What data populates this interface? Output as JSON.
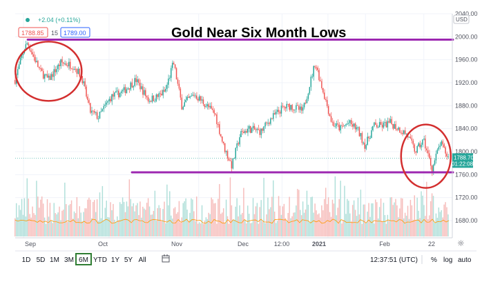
{
  "header": {
    "change_text": "+2.04 (+0.11%)",
    "bid": "1788.85",
    "spread": "15",
    "ask": "1789.00",
    "currency": "USD"
  },
  "price_tag": {
    "price": "1788.70",
    "countdown": "01:22:08"
  },
  "toolbar": {
    "ranges": [
      "1D",
      "5D",
      "1M",
      "3M",
      "6M",
      "YTD",
      "1Y",
      "5Y",
      "All"
    ],
    "selected_range": "6M",
    "clock": "12:37:51 (UTC)",
    "percent_label": "%",
    "log_label": "log",
    "auto_label": "auto"
  },
  "colors": {
    "up": "#26a69a",
    "down": "#ef5350",
    "resistance_line": "#9c27b0",
    "circle": "#d32f2f",
    "selected_range_border": "#2e7d32"
  },
  "chart_data": {
    "type": "candlestick",
    "title": "Gold Near Six Month Lows",
    "ylim": [
      1650,
      2040
    ],
    "y_ticks": [
      1680,
      1720,
      1760,
      1800,
      1840,
      1880,
      1920,
      1960,
      2000,
      2040
    ],
    "x_labels": [
      "Sep",
      "Oct",
      "Nov",
      "Dec",
      "12:00",
      "2021",
      "Feb",
      "22"
    ],
    "anchors": [
      {
        "day": 0,
        "value": 1925
      },
      {
        "day": 4,
        "value": 1975
      },
      {
        "day": 6,
        "value": 1990
      },
      {
        "day": 12,
        "value": 1940
      },
      {
        "day": 16,
        "value": 1925
      },
      {
        "day": 22,
        "value": 1955
      },
      {
        "day": 28,
        "value": 1950
      },
      {
        "day": 32,
        "value": 1930
      },
      {
        "day": 36,
        "value": 1870
      },
      {
        "day": 40,
        "value": 1860
      },
      {
        "day": 46,
        "value": 1895
      },
      {
        "day": 52,
        "value": 1905
      },
      {
        "day": 58,
        "value": 1925
      },
      {
        "day": 64,
        "value": 1890
      },
      {
        "day": 68,
        "value": 1895
      },
      {
        "day": 72,
        "value": 1905
      },
      {
        "day": 76,
        "value": 1955
      },
      {
        "day": 80,
        "value": 1880
      },
      {
        "day": 86,
        "value": 1900
      },
      {
        "day": 92,
        "value": 1880
      },
      {
        "day": 96,
        "value": 1865
      },
      {
        "day": 100,
        "value": 1810
      },
      {
        "day": 104,
        "value": 1775
      },
      {
        "day": 108,
        "value": 1830
      },
      {
        "day": 112,
        "value": 1840
      },
      {
        "day": 118,
        "value": 1835
      },
      {
        "day": 122,
        "value": 1855
      },
      {
        "day": 128,
        "value": 1875
      },
      {
        "day": 132,
        "value": 1880
      },
      {
        "day": 138,
        "value": 1870
      },
      {
        "day": 144,
        "value": 1955
      },
      {
        "day": 147,
        "value": 1915
      },
      {
        "day": 152,
        "value": 1850
      },
      {
        "day": 156,
        "value": 1840
      },
      {
        "day": 160,
        "value": 1850
      },
      {
        "day": 164,
        "value": 1840
      },
      {
        "day": 168,
        "value": 1810
      },
      {
        "day": 172,
        "value": 1845
      },
      {
        "day": 176,
        "value": 1845
      },
      {
        "day": 180,
        "value": 1850
      },
      {
        "day": 184,
        "value": 1840
      },
      {
        "day": 188,
        "value": 1830
      },
      {
        "day": 192,
        "value": 1800
      },
      {
        "day": 196,
        "value": 1820
      },
      {
        "day": 200,
        "value": 1770
      },
      {
        "day": 204,
        "value": 1815
      },
      {
        "day": 208,
        "value": 1788
      }
    ],
    "last_day": 208,
    "levels": [
      {
        "value": 1995,
        "from_day": 6,
        "to_day": 208
      },
      {
        "value": 1764,
        "from_day": 56,
        "to_day": 208
      }
    ],
    "highlights": [
      {
        "center_day": 16,
        "center_value": 1940
      },
      {
        "center_day": 197,
        "center_value": 1792
      }
    ]
  }
}
